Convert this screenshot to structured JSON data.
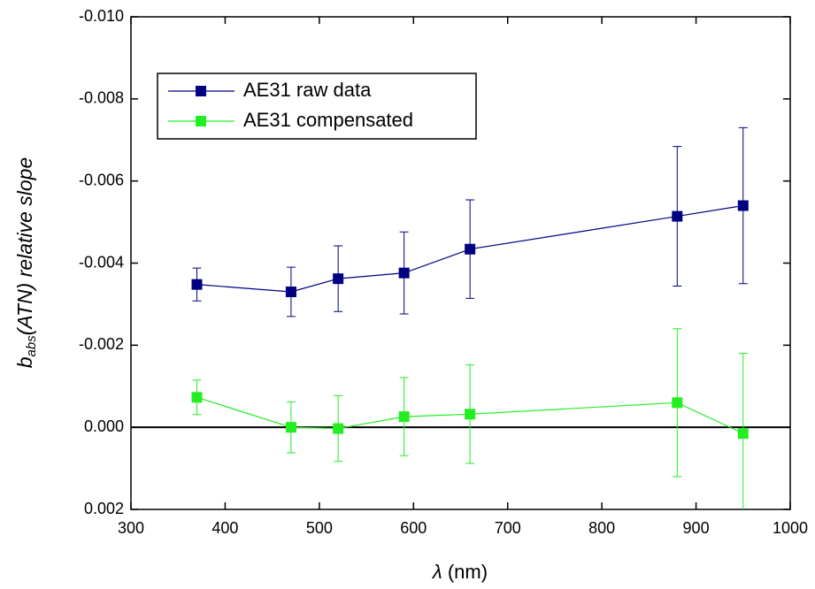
{
  "chart_data": {
    "type": "line",
    "ylabel": "b",
    "ylabel_sub": "abs",
    "ylabel_rest": "(ATN) relative slope",
    "xlabel_symbol": "λ",
    "xlabel_unit": "(nm)",
    "x": [
      370,
      470,
      520,
      590,
      660,
      880,
      950
    ],
    "series": [
      {
        "name": "AE31 raw data",
        "color": "#000080",
        "values": [
          -0.00348,
          -0.0033,
          -0.00362,
          -0.00376,
          -0.00434,
          -0.00514,
          -0.0054
        ],
        "errors": [
          0.0004,
          0.0006,
          0.0008,
          0.001,
          0.0012,
          0.0017,
          0.0019
        ]
      },
      {
        "name": "AE31 compensated",
        "color": "#22ee22",
        "values": [
          -0.00073,
          0.0,
          3e-05,
          -0.00026,
          -0.00032,
          -0.0006,
          0.00015
        ],
        "errors": [
          0.00042,
          0.00062,
          0.0008,
          0.00095,
          0.0012,
          0.0018,
          0.00195
        ]
      }
    ],
    "xlim": [
      300,
      1000
    ],
    "xticks": [
      300,
      400,
      500,
      600,
      700,
      800,
      900,
      1000
    ],
    "ylim": [
      -0.01,
      0.002
    ],
    "yticks": [
      {
        "value": -0.01,
        "label": "-0.010"
      },
      {
        "value": -0.008,
        "label": "-0.008"
      },
      {
        "value": -0.006,
        "label": "-0.006"
      },
      {
        "value": -0.004,
        "label": "-0.004"
      },
      {
        "value": -0.002,
        "label": "-0.002"
      },
      {
        "value": 0,
        "label": "0.000"
      },
      {
        "value": 0.002,
        "label": "0.002"
      }
    ],
    "legend": "upper-left"
  }
}
